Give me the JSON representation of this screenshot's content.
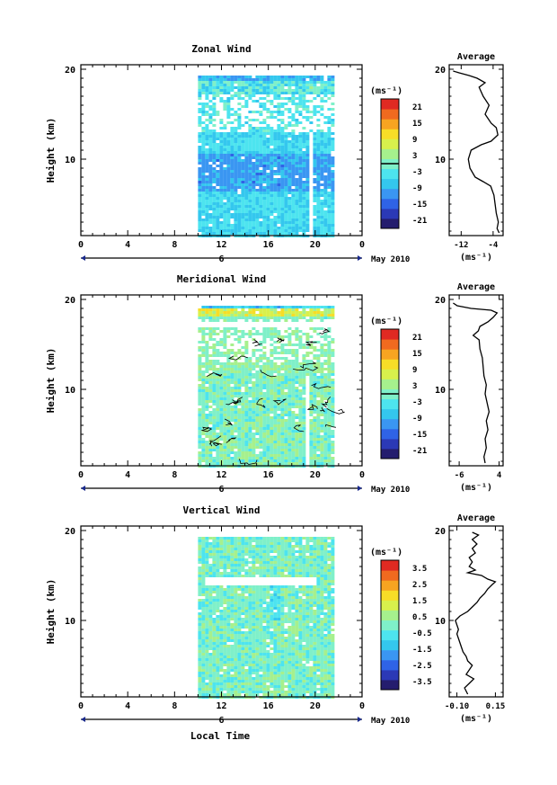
{
  "xlabel": "Local Time",
  "date_label": "May 2010",
  "day_label": "6",
  "cb_unit": "(ms⁻¹)",
  "colors": [
    "#241d6e",
    "#2b39b6",
    "#2f63e6",
    "#3a96f2",
    "#34c7ee",
    "#4de4ef",
    "#7ff0c9",
    "#a6f08d",
    "#d8f04c",
    "#f7dd27",
    "#f7a421",
    "#f06a1f",
    "#e02a22"
  ],
  "chart_data": [
    {
      "type": "heatmap",
      "title": "Zonal Wind",
      "ylabel": "Height (km)",
      "x_ticks": [
        "0",
        "4",
        "8",
        "12",
        "16",
        "20",
        "0"
      ],
      "x_range": [
        0,
        24
      ],
      "y_ticks": [
        "20",
        "10"
      ],
      "y_range": [
        1.5,
        20.5
      ],
      "data_x_range": [
        10,
        21.6
      ],
      "gaps": [
        {
          "x": [
            19.3,
            19.7
          ],
          "y": [
            1.5,
            13.0
          ]
        }
      ],
      "colorbar": {
        "ticks": [
          "21",
          "15",
          "9",
          "3",
          "-3",
          "-9",
          "-15",
          "-21"
        ],
        "range": [
          -24,
          24
        ],
        "zero_line": 0
      },
      "profile": {
        "title": "Average",
        "x_ticks": [
          "-12",
          "-4"
        ],
        "x_range": [
          -15,
          -1.5
        ],
        "y_ticks": [
          "20",
          "10"
        ],
        "x_unit": "(ms⁻¹)",
        "points": [
          [
            -2.5,
            1.8
          ],
          [
            -3.0,
            2.3
          ],
          [
            -2.7,
            3.0
          ],
          [
            -3.2,
            4.0
          ],
          [
            -3.5,
            5.0
          ],
          [
            -3.8,
            6.0
          ],
          [
            -4.6,
            7.0
          ],
          [
            -6.5,
            7.5
          ],
          [
            -8.5,
            8.0
          ],
          [
            -9.8,
            9.0
          ],
          [
            -10.2,
            10.0
          ],
          [
            -9.5,
            11.0
          ],
          [
            -7.0,
            11.6
          ],
          [
            -4.5,
            12.0
          ],
          [
            -2.8,
            12.7
          ],
          [
            -3.2,
            13.5
          ],
          [
            -4.5,
            14.0
          ],
          [
            -6.0,
            15.0
          ],
          [
            -5.0,
            16.0
          ],
          [
            -6.5,
            17.0
          ],
          [
            -7.5,
            18.0
          ],
          [
            -6.0,
            18.5
          ],
          [
            -8.0,
            19.0
          ],
          [
            -10.0,
            19.3
          ],
          [
            -12.5,
            19.6
          ],
          [
            -14.0,
            19.8
          ]
        ]
      }
    },
    {
      "type": "heatmap",
      "title": "Meridional Wind",
      "ylabel": "Height (km)",
      "x_ticks": [
        "0",
        "4",
        "8",
        "12",
        "16",
        "20",
        "0"
      ],
      "x_range": [
        0,
        24
      ],
      "y_ticks": [
        "20",
        "10"
      ],
      "y_range": [
        1.5,
        20.5
      ],
      "data_x_range": [
        10,
        21.6
      ],
      "gaps": [
        {
          "x": [
            19.1,
            19.5
          ],
          "y": [
            1.5,
            11.5
          ]
        }
      ],
      "colorbar": {
        "ticks": [
          "21",
          "15",
          "9",
          "3",
          "-3",
          "-9",
          "-15",
          "-21"
        ],
        "range": [
          -24,
          24
        ],
        "zero_line": 0
      },
      "profile": {
        "title": "Average",
        "x_ticks": [
          "-6",
          "4"
        ],
        "x_range": [
          -8.5,
          5
        ],
        "y_ticks": [
          "20",
          "10"
        ],
        "x_unit": "(ms⁻¹)",
        "points": [
          [
            0.5,
            1.8
          ],
          [
            0.2,
            2.5
          ],
          [
            0.8,
            3.5
          ],
          [
            0.5,
            4.5
          ],
          [
            1.2,
            5.5
          ],
          [
            0.8,
            6.5
          ],
          [
            1.5,
            7.5
          ],
          [
            1.0,
            8.5
          ],
          [
            0.5,
            9.5
          ],
          [
            0.8,
            10.5
          ],
          [
            0.2,
            11.5
          ],
          [
            0.0,
            12.5
          ],
          [
            -0.2,
            13.5
          ],
          [
            -0.8,
            14.5
          ],
          [
            -1.0,
            15.5
          ],
          [
            -2.5,
            16.0
          ],
          [
            -1.2,
            16.5
          ],
          [
            -0.8,
            17.0
          ],
          [
            1.2,
            17.5
          ],
          [
            2.5,
            18.0
          ],
          [
            3.5,
            18.5
          ],
          [
            2.0,
            18.8
          ],
          [
            -3.0,
            19.0
          ],
          [
            -6.5,
            19.3
          ],
          [
            -7.5,
            19.6
          ]
        ]
      }
    },
    {
      "type": "heatmap",
      "title": "Vertical Wind",
      "ylabel": "Height (km)",
      "x_ticks": [
        "0",
        "4",
        "8",
        "12",
        "16",
        "20",
        "0"
      ],
      "x_range": [
        0,
        24
      ],
      "y_ticks": [
        "20",
        "10"
      ],
      "y_range": [
        1.5,
        20.5
      ],
      "data_x_range": [
        10,
        21.6
      ],
      "gaps": [
        {
          "x": [
            10.5,
            20.0
          ],
          "y": [
            14.2,
            15.0
          ]
        }
      ],
      "colorbar": {
        "ticks": [
          "3.5",
          "2.5",
          "1.5",
          "0.5",
          "-0.5",
          "-1.5",
          "-2.5",
          "-3.5"
        ],
        "range": [
          -4,
          4
        ],
        "zero_line": null
      },
      "profile": {
        "title": "Average",
        "x_ticks": [
          "-0.10",
          "0.15"
        ],
        "x_range": [
          -0.15,
          0.2
        ],
        "y_ticks": [
          "20",
          "10"
        ],
        "x_unit": "(ms⁻¹)",
        "points": [
          [
            -0.03,
            1.8
          ],
          [
            -0.05,
            2.5
          ],
          [
            -0.02,
            3.0
          ],
          [
            0.01,
            3.5
          ],
          [
            -0.04,
            4.0
          ],
          [
            -0.02,
            4.5
          ],
          [
            0.0,
            5.0
          ],
          [
            -0.03,
            5.5
          ],
          [
            -0.04,
            6.0
          ],
          [
            -0.06,
            6.5
          ],
          [
            -0.07,
            7.0
          ],
          [
            -0.08,
            7.5
          ],
          [
            -0.09,
            8.0
          ],
          [
            -0.1,
            8.5
          ],
          [
            -0.09,
            9.0
          ],
          [
            -0.11,
            10.0
          ],
          [
            -0.08,
            10.5
          ],
          [
            -0.03,
            11.0
          ],
          [
            0.0,
            11.5
          ],
          [
            0.03,
            12.0
          ],
          [
            0.05,
            12.5
          ],
          [
            0.08,
            13.0
          ],
          [
            0.1,
            13.5
          ],
          [
            0.13,
            14.0
          ],
          [
            0.15,
            14.3
          ],
          [
            0.1,
            14.6
          ],
          [
            0.06,
            15.0
          ],
          [
            -0.03,
            15.3
          ],
          [
            0.02,
            15.6
          ],
          [
            -0.02,
            16.0
          ],
          [
            0.0,
            16.5
          ],
          [
            -0.02,
            17.0
          ],
          [
            0.02,
            17.5
          ],
          [
            0.0,
            18.0
          ],
          [
            0.03,
            18.5
          ],
          [
            0.0,
            19.0
          ],
          [
            0.04,
            19.5
          ],
          [
            0.0,
            19.8
          ]
        ]
      }
    }
  ]
}
